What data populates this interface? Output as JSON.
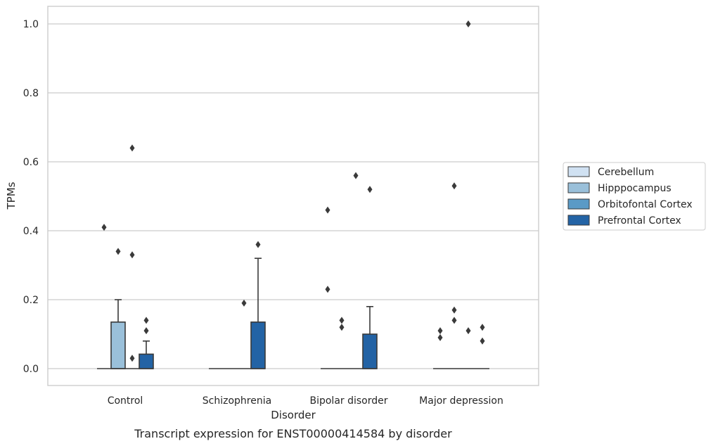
{
  "chart_data": {
    "type": "box",
    "title": "",
    "caption": "Transcript expression for ENST00000414584 by disorder",
    "xlabel": "Disorder",
    "ylabel": "TPMs",
    "ylim": [
      -0.05,
      1.05
    ],
    "yticks": [
      0.0,
      0.2,
      0.4,
      0.6,
      0.8,
      1.0
    ],
    "ytick_labels": [
      "0.0",
      "0.2",
      "0.4",
      "0.6",
      "0.8",
      "1.0"
    ],
    "grid": "horizontal",
    "legend_position": "right",
    "categories": [
      "Control",
      "Schizophrenia",
      "Bipolar disorder",
      "Major depression"
    ],
    "series": [
      {
        "name": "Cerebellum",
        "color": "#d0e1f2",
        "boxes": [
          {
            "category": "Control",
            "q1": 0.0,
            "median": 0.0,
            "q3": 0.0,
            "whisker_low": 0.0,
            "whisker_high": 0.0,
            "outliers": [
              0.41
            ]
          },
          {
            "category": "Schizophrenia",
            "q1": 0.0,
            "median": 0.0,
            "q3": 0.0,
            "whisker_low": 0.0,
            "whisker_high": 0.0,
            "outliers": []
          },
          {
            "category": "Bipolar disorder",
            "q1": 0.0,
            "median": 0.0,
            "q3": 0.0,
            "whisker_low": 0.0,
            "whisker_high": 0.0,
            "outliers": [
              0.46,
              0.23
            ]
          },
          {
            "category": "Major depression",
            "q1": 0.0,
            "median": 0.0,
            "q3": 0.0,
            "whisker_low": 0.0,
            "whisker_high": 0.0,
            "outliers": [
              0.11,
              0.09
            ]
          }
        ]
      },
      {
        "name": "Hipppocampus",
        "color": "#9ac0da",
        "boxes": [
          {
            "category": "Control",
            "q1": 0.0,
            "median": 0.0,
            "q3": 0.135,
            "whisker_low": 0.0,
            "whisker_high": 0.2,
            "outliers": [
              0.34
            ]
          },
          {
            "category": "Schizophrenia",
            "q1": 0.0,
            "median": 0.0,
            "q3": 0.0,
            "whisker_low": 0.0,
            "whisker_high": 0.0,
            "outliers": []
          },
          {
            "category": "Bipolar disorder",
            "q1": 0.0,
            "median": 0.0,
            "q3": 0.0,
            "whisker_low": 0.0,
            "whisker_high": 0.0,
            "outliers": [
              0.14,
              0.12
            ]
          },
          {
            "category": "Major depression",
            "q1": 0.0,
            "median": 0.0,
            "q3": 0.0,
            "whisker_low": 0.0,
            "whisker_high": 0.0,
            "outliers": [
              0.53,
              0.17,
              0.14
            ]
          }
        ]
      },
      {
        "name": "Orbitofontal Cortex",
        "color": "#5a9ac6",
        "boxes": [
          {
            "category": "Control",
            "q1": 0.0,
            "median": 0.0,
            "q3": 0.0,
            "whisker_low": 0.0,
            "whisker_high": 0.0,
            "outliers": [
              0.64,
              0.33,
              0.03
            ]
          },
          {
            "category": "Schizophrenia",
            "q1": 0.0,
            "median": 0.0,
            "q3": 0.0,
            "whisker_low": 0.0,
            "whisker_high": 0.0,
            "outliers": [
              0.19
            ]
          },
          {
            "category": "Bipolar disorder",
            "q1": 0.0,
            "median": 0.0,
            "q3": 0.0,
            "whisker_low": 0.0,
            "whisker_high": 0.0,
            "outliers": [
              0.56
            ]
          },
          {
            "category": "Major depression",
            "q1": 0.0,
            "median": 0.0,
            "q3": 0.0,
            "whisker_low": 0.0,
            "whisker_high": 0.0,
            "outliers": [
              1.0,
              0.11
            ]
          }
        ]
      },
      {
        "name": "Prefrontal Cortex",
        "color": "#2363a5",
        "boxes": [
          {
            "category": "Control",
            "q1": 0.0,
            "median": 0.0,
            "q3": 0.042,
            "whisker_low": 0.0,
            "whisker_high": 0.08,
            "outliers": [
              0.14,
              0.11
            ]
          },
          {
            "category": "Schizophrenia",
            "q1": 0.0,
            "median": 0.0,
            "q3": 0.135,
            "whisker_low": 0.0,
            "whisker_high": 0.32,
            "outliers": [
              0.36
            ]
          },
          {
            "category": "Bipolar disorder",
            "q1": 0.0,
            "median": 0.0,
            "q3": 0.1,
            "whisker_low": 0.0,
            "whisker_high": 0.18,
            "outliers": [
              0.52
            ]
          },
          {
            "category": "Major depression",
            "q1": 0.0,
            "median": 0.0,
            "q3": 0.0,
            "whisker_low": 0.0,
            "whisker_high": 0.0,
            "outliers": [
              0.12,
              0.08
            ]
          }
        ]
      }
    ]
  }
}
